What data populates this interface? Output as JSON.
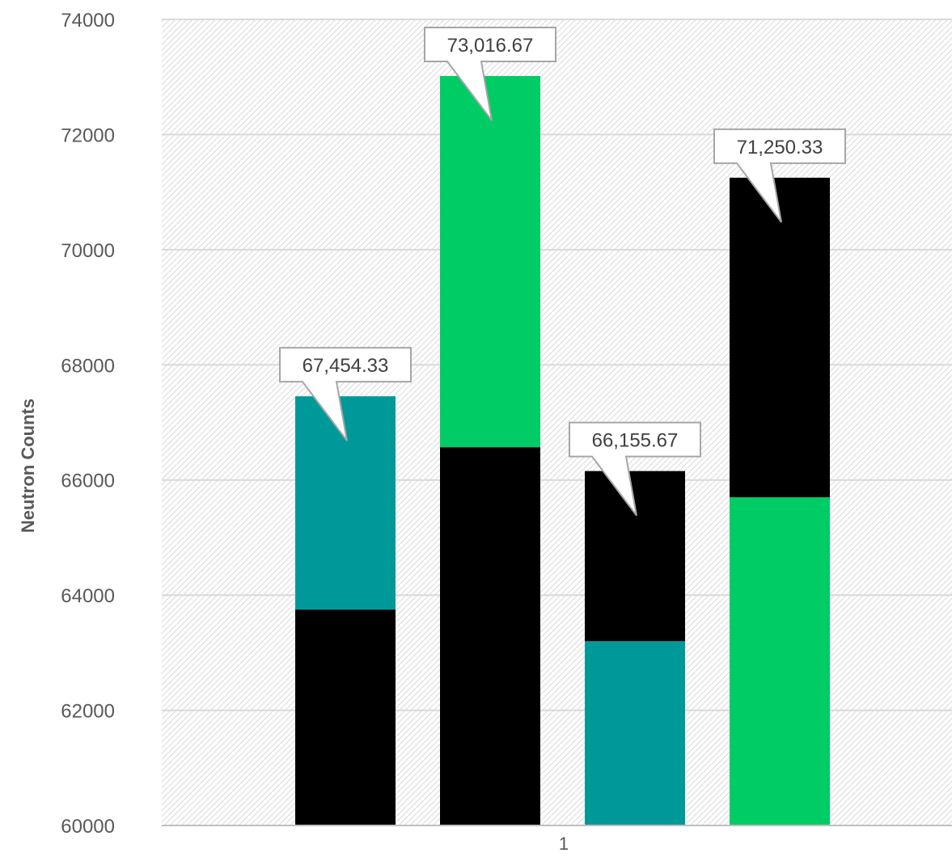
{
  "chart_data": {
    "type": "bar",
    "title": "",
    "xlabel": "",
    "ylabel": "Neutron Counts",
    "categories": [
      "1"
    ],
    "ylim": [
      60000,
      74000
    ],
    "y_ticks": [
      60000,
      62000,
      64000,
      66000,
      68000,
      70000,
      72000,
      74000
    ],
    "grid": true,
    "legend": "none",
    "bars": [
      {
        "value": 67454.33,
        "label": "67,454.33",
        "segments": [
          {
            "from": 60000,
            "to": 63750,
            "color": "#000000"
          },
          {
            "from": 63750,
            "to": 67454.33,
            "color": "#00999a"
          }
        ]
      },
      {
        "value": 73016.67,
        "label": "73,016.67",
        "segments": [
          {
            "from": 60000,
            "to": 66570,
            "color": "#000000"
          },
          {
            "from": 66570,
            "to": 73016.67,
            "color": "#00cc66"
          }
        ]
      },
      {
        "value": 66155.67,
        "label": "66,155.67",
        "segments": [
          {
            "from": 60000,
            "to": 63200,
            "color": "#00999a"
          },
          {
            "from": 63200,
            "to": 66155.67,
            "color": "#000000"
          }
        ]
      },
      {
        "value": 71250.33,
        "label": "71,250.33",
        "segments": [
          {
            "from": 60000,
            "to": 65700,
            "color": "#00cc66"
          },
          {
            "from": 65700,
            "to": 71250.33,
            "color": "#000000"
          }
        ]
      }
    ]
  },
  "colors": {
    "teal": "#00999a",
    "green": "#00cc66",
    "black": "#000000",
    "grid": "#d9d9d9",
    "text": "#595959"
  }
}
